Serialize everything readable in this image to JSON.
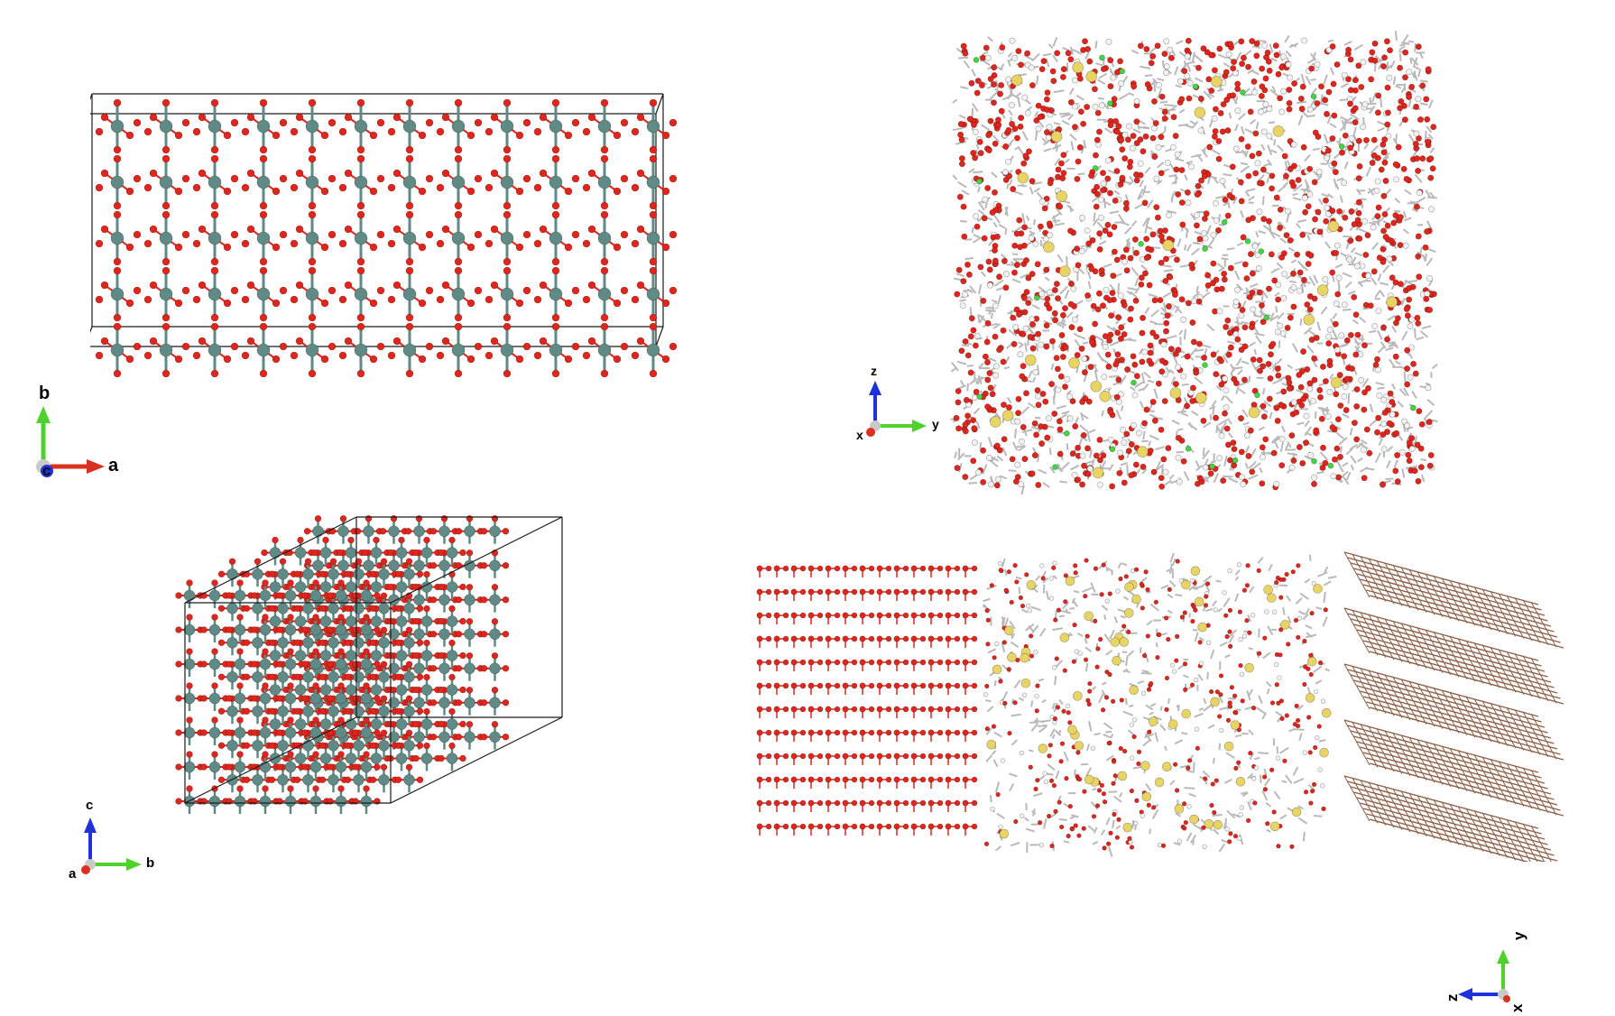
{
  "colors": {
    "oxygen": "#e0261c",
    "metal": "#5f8a85",
    "carbon_bond": "#b9b9b9",
    "hydrogen": "#f2f2f2",
    "sulfur": "#e8d465",
    "fluorine": "#40d640",
    "graphite": "#8c6048",
    "cell_edge": "#1a1a1a",
    "axis_x": "#d9301f",
    "axis_y": "#4fd12c",
    "axis_z": "#1f31d9",
    "axis_origin": "#c9c9c9"
  },
  "axes": {
    "panel1": {
      "horizontal": "a",
      "vertical": "b",
      "out": "c"
    },
    "panel2": {
      "horizontal": "y",
      "vertical": "z",
      "out": "x"
    },
    "panel3": {
      "horizontal": "b",
      "vertical": "c",
      "out": "a"
    },
    "panel4": {
      "horizontal": "z",
      "vertical": "y",
      "out": "x"
    }
  }
}
